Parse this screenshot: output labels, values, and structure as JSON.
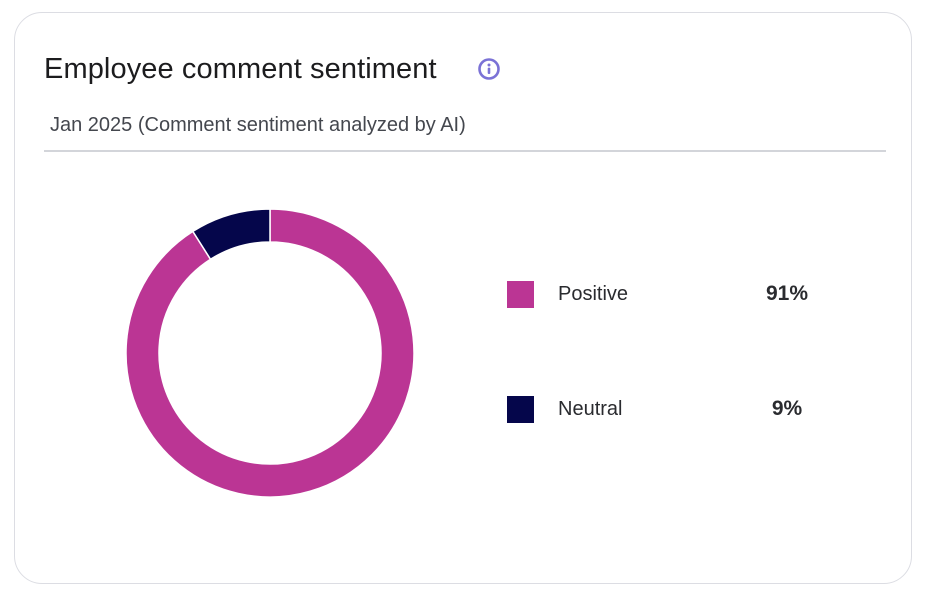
{
  "card": {
    "title": "Employee comment sentiment",
    "subtitle": "Jan 2025 (Comment sentiment analyzed by AI)",
    "info_icon": "info-icon"
  },
  "colors": {
    "positive": "#bb3594",
    "neutral": "#05064b",
    "info_icon": "#7b72d6"
  },
  "chart_data": {
    "type": "pie",
    "style": "donut",
    "categories": [
      "Positive",
      "Neutral"
    ],
    "values": [
      91,
      9
    ],
    "value_labels": [
      "91%",
      "9%"
    ],
    "legend": "right"
  }
}
